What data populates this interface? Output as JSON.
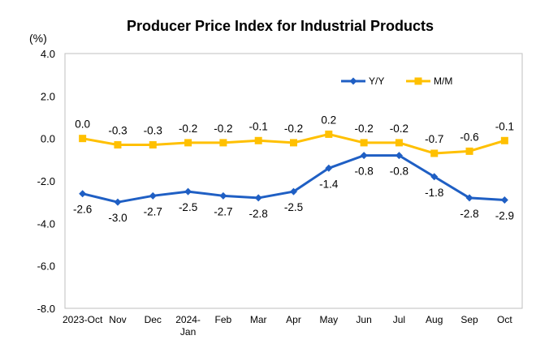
{
  "chart_data": {
    "type": "line",
    "title": "Producer Price Index for Industrial Products",
    "unit_label": "(%)",
    "categories": [
      "2023-Oct",
      "Nov",
      "Dec",
      "2024-Jan",
      "Feb",
      "Mar",
      "Apr",
      "May",
      "Jun",
      "Jul",
      "Aug",
      "Sep",
      "Oct"
    ],
    "category_lines": [
      [
        "2023-Oct"
      ],
      [
        "Nov"
      ],
      [
        "Dec"
      ],
      [
        "2024-",
        "Jan"
      ],
      [
        "Feb"
      ],
      [
        "Mar"
      ],
      [
        "Apr"
      ],
      [
        "May"
      ],
      [
        "Jun"
      ],
      [
        "Jul"
      ],
      [
        "Aug"
      ],
      [
        "Sep"
      ],
      [
        "Oct"
      ]
    ],
    "ylim": [
      -8.0,
      4.0
    ],
    "yticks": [
      4.0,
      2.0,
      0.0,
      -2.0,
      -4.0,
      -6.0,
      -8.0
    ],
    "ytick_labels": [
      "4.0",
      "2.0",
      "0.0",
      "-2.0",
      "-4.0",
      "-6.0",
      "-8.0"
    ],
    "grid": false,
    "legend_position": "top-right",
    "series": [
      {
        "name": "Y/Y",
        "color": "#1f5fc4",
        "marker": "diamond",
        "label_position": "below",
        "values": [
          -2.6,
          -3.0,
          -2.7,
          -2.5,
          -2.7,
          -2.8,
          -2.5,
          -1.4,
          -0.8,
          -0.8,
          -1.8,
          -2.8,
          -2.9
        ],
        "labels": [
          "-2.6",
          "-3.0",
          "-2.7",
          "-2.5",
          "-2.7",
          "-2.8",
          "-2.5",
          "-1.4",
          "-0.8",
          "-0.8",
          "-1.8",
          "-2.8",
          "-2.9"
        ]
      },
      {
        "name": "M/M",
        "color": "#ffc000",
        "marker": "square",
        "label_position": "above",
        "values": [
          0.0,
          -0.3,
          -0.3,
          -0.2,
          -0.2,
          -0.1,
          -0.2,
          0.2,
          -0.2,
          -0.2,
          -0.7,
          -0.6,
          -0.1
        ],
        "labels": [
          "0.0",
          "-0.3",
          "-0.3",
          "-0.2",
          "-0.2",
          "-0.1",
          "-0.2",
          "0.2",
          "-0.2",
          "-0.2",
          "-0.7",
          "-0.6",
          "-0.1"
        ]
      }
    ]
  }
}
